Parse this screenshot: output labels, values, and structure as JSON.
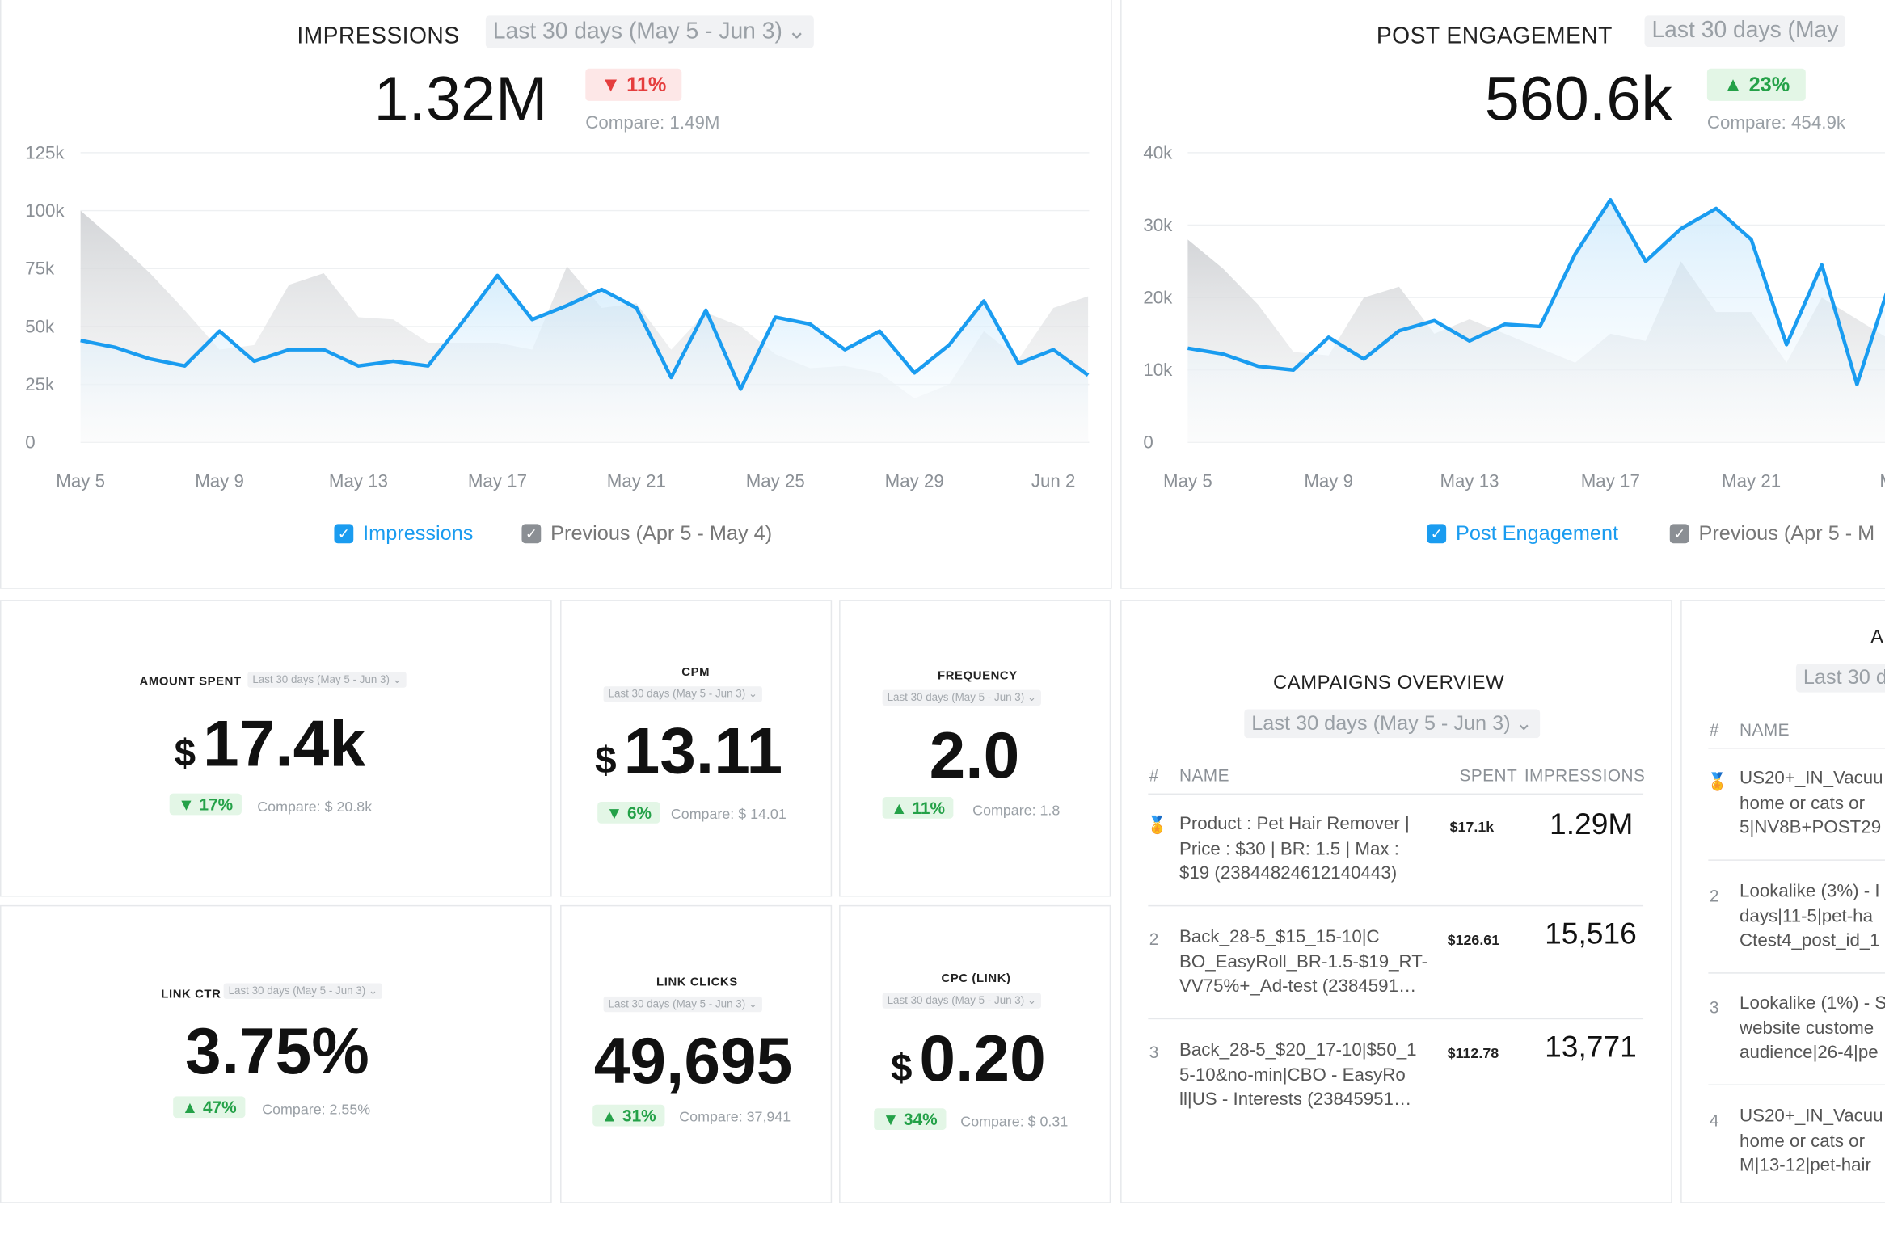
{
  "impressions": {
    "title": "IMPRESSIONS",
    "range": "Last 30 days (May 5 - Jun 3)",
    "value": "1.32M",
    "change": "▼ 11%",
    "compare": "Compare: 1.49M",
    "legend_current": "Impressions",
    "legend_previous": "Previous (Apr 5 - May 4)"
  },
  "engagement": {
    "title": "POST ENGAGEMENT",
    "range": "Last 30 days (May",
    "value": "560.6k",
    "change": "▲ 23%",
    "compare": "Compare: 454.9k",
    "legend_current": "Post Engagement",
    "legend_previous": "Previous (Apr 5 - M"
  },
  "kpis": {
    "amount_spent": {
      "title": "AMOUNT SPENT",
      "range": "Last 30 days (May 5 - Jun 3) ⌄",
      "currency": "$",
      "value": "17.4k",
      "change": "▼ 17%",
      "compare": "Compare: $ 20.8k"
    },
    "cpm": {
      "title": "CPM",
      "range": "Last 30 days (May 5 - Jun 3) ⌄",
      "currency": "$",
      "value": "13.11",
      "change": "▼ 6%",
      "compare": "Compare: $ 14.01"
    },
    "frequency": {
      "title": "FREQUENCY",
      "range": "Last 30 days (May 5 - Jun 3) ⌄",
      "value": "2.0",
      "change": "▲ 11%",
      "compare": "Compare: 1.8"
    },
    "link_ctr": {
      "title": "LINK CTR",
      "range": "Last 30 days (May 5 - Jun 3) ⌄",
      "value": "3.75%",
      "change": "▲ 47%",
      "compare": "Compare: 2.55%"
    },
    "link_clicks": {
      "title": "LINK CLICKS",
      "range": "Last 30 days (May 5 - Jun 3) ⌄",
      "value": "49,695",
      "change": "▲ 31%",
      "compare": "Compare: 37,941"
    },
    "cpc": {
      "title": "CPC (LINK)",
      "range": "Last 30 days (May 5 - Jun 3) ⌄",
      "currency": "$",
      "value": "0.20",
      "change": "▼ 34%",
      "compare": "Compare: $ 0.31"
    }
  },
  "campaigns": {
    "title": "CAMPAIGNS OVERVIEW",
    "range": "Last 30 days (May 5 - Jun 3)",
    "col_num": "#",
    "col_name": "NAME",
    "col_spent": "SPENT",
    "col_impressions": "IMPRESSIONS",
    "rows": [
      {
        "num": "🏅",
        "name": "Product : Pet Hair Remover |\nPrice : $30 | BR: 1.5 | Max :\n$19 (23844824612140443)",
        "spent": "$17.1k",
        "impressions": "1.29M"
      },
      {
        "num": "2",
        "name": "Back_28-5_$15_15-10|C\nBO_EasyRoll_BR-1.5-$19_RT-\nVV75%+_Ad-test (2384591…",
        "spent": "$126.61",
        "impressions": "15,516"
      },
      {
        "num": "3",
        "name": "Back_28-5_$20_17-10|$50_1\n5-10&no-min|CBO - EasyRo\nll|US - Interests (23845951…",
        "spent": "$112.78",
        "impressions": "13,771"
      }
    ]
  },
  "adsets": {
    "title": "A",
    "range": "Last 30 d",
    "col_num": "#",
    "col_name": "NAME",
    "rows": [
      {
        "num": "🏅",
        "name": "US20+_IN_Vacuu\nhome or cats or\n5|NV8B+POST29"
      },
      {
        "num": "2",
        "name": "Lookalike (3%) - I\ndays|11-5|pet-ha\nCtest4_post_id_1"
      },
      {
        "num": "3",
        "name": "Lookalike (1%) - S\nwebsite custome\naudience|26-4|pe"
      },
      {
        "num": "4",
        "name": "US20+_IN_Vacuu\nhome or cats or\nM|13-12|pet-hair"
      }
    ]
  },
  "chart_data": [
    {
      "type": "area",
      "title": "IMPRESSIONS",
      "x_tick_labels": [
        "May 5",
        "May 9",
        "May 13",
        "May 17",
        "May 21",
        "May 25",
        "May 29",
        "Jun 2"
      ],
      "y_tick_labels": [
        "0",
        "25k",
        "50k",
        "75k",
        "100k",
        "125k"
      ],
      "ylim": [
        0,
        125000
      ],
      "series": [
        {
          "name": "Impressions",
          "color": "#1a9cf0",
          "values": [
            44000,
            41000,
            36000,
            33000,
            48000,
            35000,
            40000,
            40000,
            33000,
            35000,
            33000,
            52000,
            72000,
            53000,
            59000,
            66000,
            58000,
            28000,
            57000,
            23000,
            54000,
            51000,
            40000,
            48000,
            30000,
            42000,
            61000,
            34000,
            40000,
            29000
          ]
        },
        {
          "name": "Previous (Apr 5 - May 4)",
          "color": "#d3d5d8",
          "values": [
            100000,
            87000,
            73000,
            57000,
            40000,
            42000,
            68000,
            73000,
            54000,
            53000,
            43000,
            43000,
            43000,
            40000,
            76000,
            58000,
            60000,
            40000,
            56000,
            50000,
            38000,
            32000,
            33000,
            30000,
            19000,
            25000,
            48000,
            36000,
            58000,
            63000
          ]
        }
      ],
      "grid": true,
      "legend": "bottom-center"
    },
    {
      "type": "area",
      "title": "POST ENGAGEMENT",
      "x_tick_labels": [
        "May 5",
        "May 9",
        "May 13",
        "May 17",
        "May 21",
        "Ma"
      ],
      "y_tick_labels": [
        "0",
        "10k",
        "20k",
        "30k",
        "40k"
      ],
      "ylim": [
        0,
        40000
      ],
      "series": [
        {
          "name": "Post Engagement",
          "color": "#1a9cf0",
          "values": [
            13000,
            12200,
            10500,
            10000,
            14500,
            11500,
            15400,
            16800,
            14000,
            16300,
            16000,
            26000,
            33500,
            25000,
            29500,
            32300,
            28000,
            13500,
            24500,
            8000,
            23000
          ]
        },
        {
          "name": "Previous (Apr 5 - M",
          "color": "#d3d5d8",
          "values": [
            28000,
            24000,
            19000,
            12500,
            12000,
            20000,
            21500,
            15000,
            17000,
            15000,
            13000,
            11000,
            15000,
            14000,
            25000,
            18000,
            18000,
            11000,
            20000,
            17000,
            14000
          ]
        }
      ],
      "grid": true,
      "legend": "bottom-center"
    }
  ]
}
